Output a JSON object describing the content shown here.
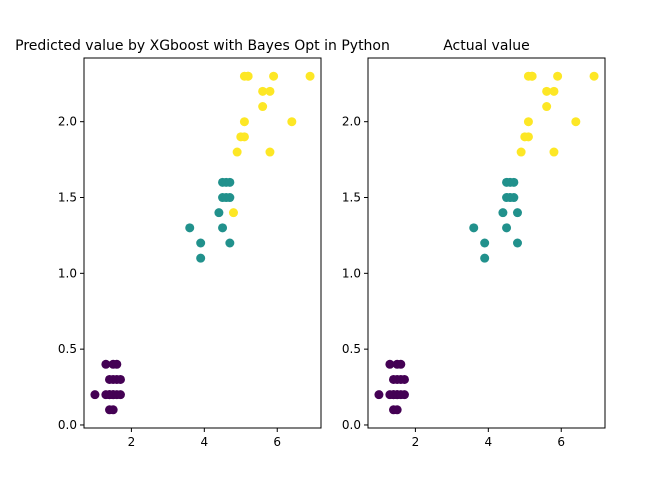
{
  "chart_data": [
    {
      "type": "scatter",
      "title": "Predicted value by XGboost with Bayes Opt in Python",
      "xlabel": "",
      "ylabel": "",
      "xlim": [
        0.7,
        7.2
      ],
      "ylim": [
        -0.02,
        2.42
      ],
      "xticks": [
        2,
        4,
        6
      ],
      "yticks": [
        0.0,
        0.5,
        1.0,
        1.5,
        2.0
      ],
      "ytick_labels": [
        "0.0",
        "0.5",
        "1.0",
        "1.5",
        "2.0"
      ],
      "grid": false,
      "legend": "none",
      "colors": {
        "class0": "#440154",
        "class1": "#21918c",
        "class2": "#fde725"
      },
      "series": [
        {
          "color_key": "class0",
          "x": [
            1.0,
            1.3,
            1.3,
            1.4,
            1.4,
            1.4,
            1.4,
            1.5,
            1.5,
            1.5,
            1.5,
            1.5,
            1.6,
            1.6,
            1.6,
            1.7,
            1.7
          ],
          "y": [
            0.2,
            0.4,
            0.2,
            0.3,
            0.2,
            0.1,
            0.2,
            0.4,
            0.3,
            0.2,
            0.1,
            0.2,
            0.4,
            0.2,
            0.3,
            0.3,
            0.2
          ]
        },
        {
          "color_key": "class1",
          "x": [
            3.6,
            3.9,
            3.9,
            4.4,
            4.5,
            4.5,
            4.5,
            4.6,
            4.6,
            4.7,
            4.7,
            4.7
          ],
          "y": [
            1.3,
            1.2,
            1.1,
            1.4,
            1.6,
            1.5,
            1.3,
            1.6,
            1.5,
            1.6,
            1.5,
            1.2
          ]
        },
        {
          "color_key": "class2",
          "x": [
            4.8,
            4.9,
            5.0,
            5.1,
            5.1,
            5.1,
            5.2,
            5.2,
            5.6,
            5.6,
            5.8,
            5.8,
            5.9,
            6.4,
            6.9
          ],
          "y": [
            1.4,
            1.8,
            1.9,
            1.9,
            2.0,
            2.3,
            2.3,
            2.3,
            2.1,
            2.2,
            1.8,
            2.2,
            2.3,
            2.0,
            2.3
          ]
        }
      ]
    },
    {
      "type": "scatter",
      "title": "Actual value",
      "xlabel": "",
      "ylabel": "",
      "xlim": [
        0.7,
        7.2
      ],
      "ylim": [
        -0.02,
        2.42
      ],
      "xticks": [
        2,
        4,
        6
      ],
      "yticks": [
        0.0,
        0.5,
        1.0,
        1.5,
        2.0
      ],
      "ytick_labels": [
        "0.0",
        "0.5",
        "1.0",
        "1.5",
        "2.0"
      ],
      "grid": false,
      "legend": "none",
      "colors": {
        "class0": "#440154",
        "class1": "#21918c",
        "class2": "#fde725"
      },
      "series": [
        {
          "color_key": "class0",
          "x": [
            1.0,
            1.3,
            1.3,
            1.4,
            1.4,
            1.4,
            1.4,
            1.5,
            1.5,
            1.5,
            1.5,
            1.5,
            1.6,
            1.6,
            1.6,
            1.7,
            1.7
          ],
          "y": [
            0.2,
            0.4,
            0.2,
            0.3,
            0.2,
            0.1,
            0.2,
            0.4,
            0.3,
            0.2,
            0.1,
            0.2,
            0.4,
            0.2,
            0.3,
            0.3,
            0.2
          ]
        },
        {
          "color_key": "class1",
          "x": [
            3.6,
            3.9,
            3.9,
            4.4,
            4.5,
            4.5,
            4.5,
            4.6,
            4.6,
            4.7,
            4.7,
            4.8,
            4.8
          ],
          "y": [
            1.3,
            1.2,
            1.1,
            1.4,
            1.6,
            1.5,
            1.3,
            1.6,
            1.5,
            1.6,
            1.5,
            1.2,
            1.4
          ]
        },
        {
          "color_key": "class2",
          "x": [
            4.9,
            5.0,
            5.1,
            5.1,
            5.1,
            5.2,
            5.2,
            5.6,
            5.6,
            5.8,
            5.8,
            5.9,
            6.4,
            6.9
          ],
          "y": [
            1.8,
            1.9,
            1.9,
            2.0,
            2.3,
            2.3,
            2.3,
            2.1,
            2.2,
            1.8,
            2.2,
            2.3,
            2.0,
            2.3
          ]
        }
      ]
    }
  ]
}
